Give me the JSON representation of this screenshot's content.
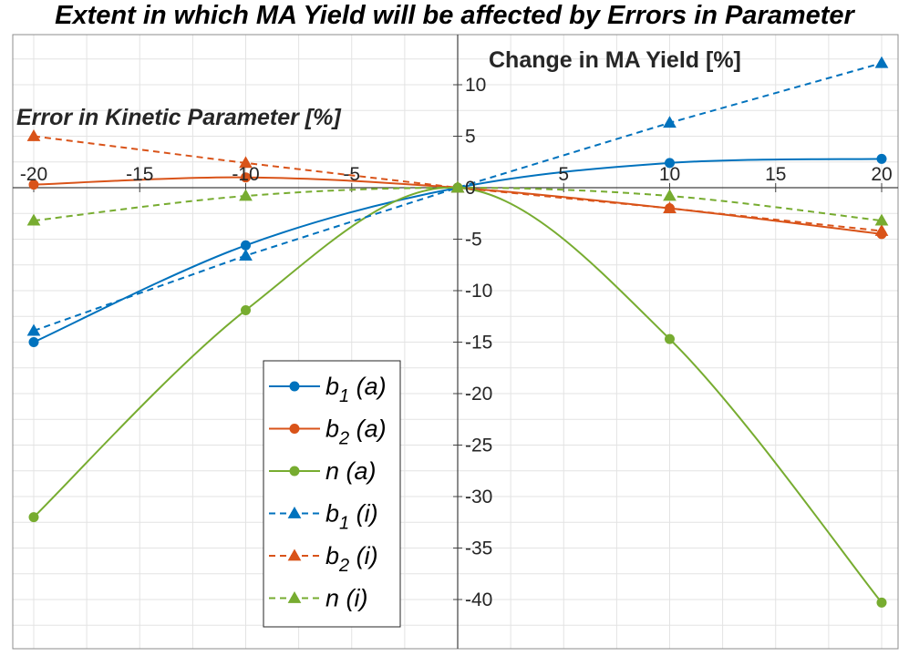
{
  "chart_data": {
    "type": "line",
    "title": "Extent in which MA Yield will be affected by Errors in Parameter",
    "xlabel": "Error in Kinetic Parameter [%]",
    "ylabel": "Change in MA Yield [%]",
    "xlim": [
      -22,
      22
    ],
    "ylim": [
      -44,
      15
    ],
    "xticks": [
      -20,
      -15,
      -10,
      -5,
      0,
      5,
      10,
      15,
      20
    ],
    "yticks": [
      10,
      5,
      0,
      -5,
      -10,
      -15,
      -20,
      -25,
      -30,
      -35,
      -40
    ],
    "grid": true,
    "legend_position": "bottom-center",
    "x": [
      -20,
      -10,
      0,
      10,
      20
    ],
    "series": [
      {
        "name": "b1 (a)",
        "base": "b",
        "sub": "1",
        "suffix": " (a)",
        "color": "#0072BD",
        "dash": "solid",
        "marker": "circle",
        "smooth": true,
        "values": [
          -15.0,
          -5.6,
          0,
          2.4,
          2.8
        ]
      },
      {
        "name": "b2 (a)",
        "base": "b",
        "sub": "2",
        "suffix": " (a)",
        "color": "#D95319",
        "dash": "solid",
        "marker": "circle",
        "smooth": true,
        "values": [
          0.3,
          1.0,
          0,
          -2.0,
          -4.5
        ]
      },
      {
        "name": "n (a)",
        "base": "n",
        "sub": "",
        "suffix": " (a)",
        "color": "#77AC30",
        "dash": "solid",
        "marker": "circle",
        "smooth": true,
        "values": [
          -32.0,
          -11.9,
          0,
          -14.7,
          -40.3
        ]
      },
      {
        "name": "b1 (i)",
        "base": "b",
        "sub": "1",
        "suffix": " (i)",
        "color": "#0072BD",
        "dash": "dashed",
        "marker": "triangle",
        "smooth": false,
        "values": [
          -13.9,
          -6.6,
          0,
          6.3,
          12.1
        ]
      },
      {
        "name": "b2 (i)",
        "base": "b",
        "sub": "2",
        "suffix": " (i)",
        "color": "#D95319",
        "dash": "dashed",
        "marker": "triangle",
        "smooth": false,
        "values": [
          5.0,
          2.4,
          0,
          -2.0,
          -4.2
        ]
      },
      {
        "name": "n (i)",
        "base": "n",
        "sub": "",
        "suffix": " (i)",
        "color": "#77AC30",
        "dash": "dashed",
        "marker": "triangle",
        "smooth": true,
        "values": [
          -3.2,
          -0.8,
          0,
          -0.8,
          -3.2
        ]
      }
    ]
  }
}
